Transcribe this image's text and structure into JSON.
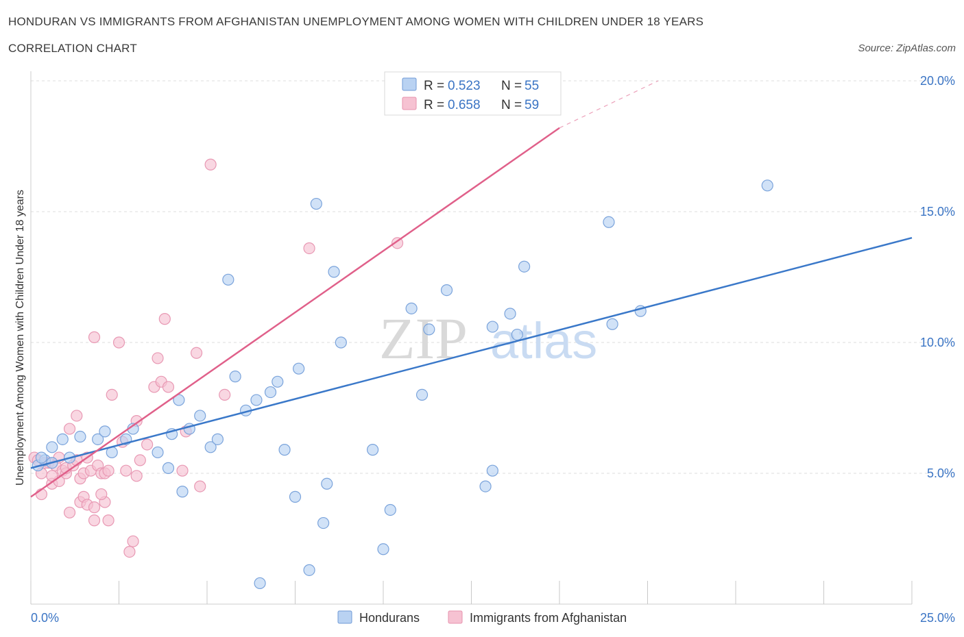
{
  "header": {
    "title": "HONDURAN VS IMMIGRANTS FROM AFGHANISTAN UNEMPLOYMENT AMONG WOMEN WITH CHILDREN UNDER 18 YEARS",
    "subtitle": "CORRELATION CHART",
    "source": "Source: ZipAtlas.com"
  },
  "watermark": {
    "zip": "ZIP",
    "atlas": "atlas"
  },
  "colors": {
    "blue": "#3a78c9",
    "blue_fill": "#b9d2f2",
    "pink": "#e0608a",
    "pink_fill": "#f6c2d2",
    "tick_label": "#3a74c4",
    "grid": "#dddddd"
  },
  "legend_stats": [
    {
      "r_label": "R = ",
      "r_value": "0.523",
      "n_label": "N = ",
      "n_value": "55"
    },
    {
      "r_label": "R = ",
      "r_value": "0.658",
      "n_label": "N = ",
      "n_value": "59"
    }
  ],
  "chart_data": {
    "type": "scatter",
    "title": "HONDURAN VS IMMIGRANTS FROM AFGHANISTAN UNEMPLOYMENT AMONG WOMEN WITH CHILDREN UNDER 18 YEARS",
    "xlabel": "",
    "ylabel": "Unemployment Among Women with Children Under 18 years",
    "xlim": [
      0,
      25
    ],
    "ylim": [
      0,
      20
    ],
    "x_tick_labels": [
      "0.0%",
      "25.0%"
    ],
    "y_ticks": [
      5,
      10,
      15,
      20
    ],
    "y_tick_labels": [
      "5.0%",
      "10.0%",
      "15.0%",
      "20.0%"
    ],
    "grid": true,
    "legend_position": "bottom-center",
    "series": [
      {
        "name": "Hondurans",
        "color": "#3a78c9",
        "r": 0.523,
        "n": 55,
        "trend": {
          "x0": 0,
          "y0": 5.2,
          "x1": 25,
          "y1": 14.0
        },
        "points": [
          [
            0.2,
            5.3
          ],
          [
            0.4,
            5.5
          ],
          [
            0.6,
            5.4
          ],
          [
            0.6,
            6.0
          ],
          [
            0.9,
            6.3
          ],
          [
            1.1,
            5.6
          ],
          [
            1.4,
            6.4
          ],
          [
            1.9,
            6.3
          ],
          [
            2.1,
            6.6
          ],
          [
            2.3,
            5.8
          ],
          [
            2.7,
            6.3
          ],
          [
            2.9,
            6.7
          ],
          [
            3.6,
            5.8
          ],
          [
            3.9,
            5.2
          ],
          [
            4.0,
            6.5
          ],
          [
            4.2,
            7.8
          ],
          [
            4.3,
            4.3
          ],
          [
            4.5,
            6.7
          ],
          [
            4.8,
            7.2
          ],
          [
            5.1,
            6.0
          ],
          [
            5.3,
            6.3
          ],
          [
            5.6,
            12.4
          ],
          [
            5.8,
            8.7
          ],
          [
            6.1,
            7.4
          ],
          [
            6.4,
            7.8
          ],
          [
            6.5,
            0.8
          ],
          [
            6.8,
            8.1
          ],
          [
            7.0,
            8.5
          ],
          [
            7.2,
            5.9
          ],
          [
            7.5,
            4.1
          ],
          [
            7.6,
            9.0
          ],
          [
            7.9,
            1.3
          ],
          [
            8.1,
            15.3
          ],
          [
            8.3,
            3.1
          ],
          [
            8.4,
            4.6
          ],
          [
            8.6,
            12.7
          ],
          [
            8.8,
            10.0
          ],
          [
            9.7,
            5.9
          ],
          [
            10.0,
            2.1
          ],
          [
            10.2,
            3.6
          ],
          [
            10.8,
            11.3
          ],
          [
            11.1,
            8.0
          ],
          [
            11.3,
            10.5
          ],
          [
            11.8,
            12.0
          ],
          [
            12.9,
            4.5
          ],
          [
            13.1,
            5.1
          ],
          [
            13.1,
            10.6
          ],
          [
            13.6,
            11.1
          ],
          [
            13.8,
            10.3
          ],
          [
            14.0,
            12.9
          ],
          [
            16.4,
            14.6
          ],
          [
            16.5,
            10.7
          ],
          [
            17.3,
            11.2
          ],
          [
            20.9,
            16.0
          ],
          [
            0.3,
            5.6
          ]
        ]
      },
      {
        "name": "Immigrants from Afghanistan",
        "color": "#e0608a",
        "r": 0.658,
        "n": 59,
        "trend": {
          "x0": 0,
          "y0": 4.1,
          "x1": 15,
          "y1": 18.2,
          "dash_x1": 17.8,
          "dash_y1": 20.0
        },
        "points": [
          [
            0.1,
            5.6
          ],
          [
            0.2,
            5.5
          ],
          [
            0.3,
            4.2
          ],
          [
            0.3,
            5.0
          ],
          [
            0.5,
            5.4
          ],
          [
            0.6,
            4.6
          ],
          [
            0.7,
            5.3
          ],
          [
            0.8,
            5.6
          ],
          [
            0.8,
            4.7
          ],
          [
            0.9,
            5.1
          ],
          [
            1.0,
            5.0
          ],
          [
            1.0,
            5.2
          ],
          [
            1.1,
            6.7
          ],
          [
            1.1,
            3.5
          ],
          [
            1.2,
            5.3
          ],
          [
            1.3,
            7.2
          ],
          [
            1.4,
            4.8
          ],
          [
            1.4,
            3.9
          ],
          [
            1.5,
            4.1
          ],
          [
            1.5,
            5.0
          ],
          [
            1.6,
            3.8
          ],
          [
            1.6,
            5.6
          ],
          [
            1.7,
            5.1
          ],
          [
            1.8,
            3.7
          ],
          [
            1.8,
            3.2
          ],
          [
            1.8,
            10.2
          ],
          [
            1.9,
            5.3
          ],
          [
            2.0,
            5.0
          ],
          [
            2.1,
            3.9
          ],
          [
            2.1,
            5.0
          ],
          [
            2.2,
            5.1
          ],
          [
            2.2,
            3.2
          ],
          [
            2.3,
            8.0
          ],
          [
            2.5,
            10.0
          ],
          [
            2.6,
            6.2
          ],
          [
            2.7,
            5.1
          ],
          [
            2.8,
            2.0
          ],
          [
            2.9,
            2.4
          ],
          [
            3.0,
            4.9
          ],
          [
            3.0,
            7.0
          ],
          [
            3.1,
            5.5
          ],
          [
            3.3,
            6.1
          ],
          [
            3.5,
            8.3
          ],
          [
            3.6,
            9.4
          ],
          [
            3.7,
            8.5
          ],
          [
            3.8,
            10.9
          ],
          [
            3.9,
            8.3
          ],
          [
            4.3,
            5.1
          ],
          [
            4.4,
            6.6
          ],
          [
            4.7,
            9.6
          ],
          [
            4.8,
            4.5
          ],
          [
            5.1,
            16.8
          ],
          [
            5.5,
            8.0
          ],
          [
            7.9,
            13.6
          ],
          [
            10.4,
            13.8
          ],
          [
            0.4,
            5.4
          ],
          [
            0.6,
            4.9
          ],
          [
            1.3,
            5.5
          ],
          [
            2.0,
            4.2
          ]
        ]
      }
    ]
  },
  "bottom_legend": [
    {
      "label": "Hondurans"
    },
    {
      "label": "Immigrants from Afghanistan"
    }
  ]
}
